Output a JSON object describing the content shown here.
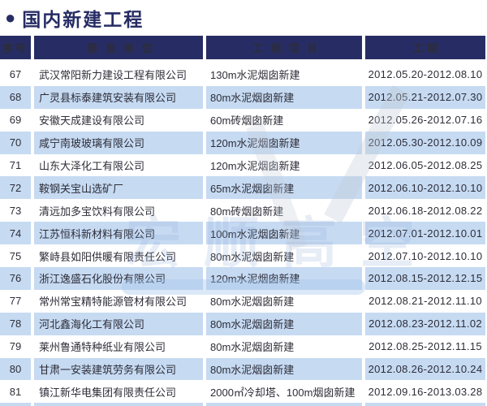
{
  "header": {
    "bullet": "●",
    "title": "国内新建工程"
  },
  "colors": {
    "navy": "#272d64",
    "stripe": "#c6daf2",
    "body_text": "#2d2d38"
  },
  "watermark": {
    "text": "宏顺高空"
  },
  "table": {
    "headers": [
      "序号",
      "建 设 单 位",
      "工 程 项 目",
      "工  期"
    ],
    "rows": [
      {
        "no": "67",
        "company": "武汉常阳新力建设工程有限公司",
        "project": "130m水泥烟囱新建",
        "period": "2012.05.20-2012.08.10"
      },
      {
        "no": "68",
        "company": "广灵县标泰建筑安装有限公司",
        "project": "80m水泥烟囱新建",
        "period": "2012.05.21-2012.07.30"
      },
      {
        "no": "69",
        "company": "安徽天成建设有限公司",
        "project": "60m砖烟囱新建",
        "period": "2012.05.26-2012.07.16"
      },
      {
        "no": "70",
        "company": "咸宁南玻玻璃有限公司",
        "project": "120m水泥烟囱新建",
        "period": "2012.05.30-2012.10.09"
      },
      {
        "no": "71",
        "company": "山东大泽化工有限公司",
        "project": "120m水泥烟囱新建",
        "period": "2012.06.05-2012.08.25"
      },
      {
        "no": "72",
        "company": "鞍钢关宝山选矿厂",
        "project": "65m水泥烟囱新建",
        "period": "2012.06.10-2012.10.10"
      },
      {
        "no": "73",
        "company": "清远加多宝饮料有限公司",
        "project": "80m砖烟囱新建",
        "period": "2012.06.18-2012.08.22"
      },
      {
        "no": "74",
        "company": "江苏恒科新材料有限公司",
        "project": "100m水泥烟囱新建",
        "period": "2012.07.01-2012.10.01"
      },
      {
        "no": "75",
        "company": "繁峙县如阳供暖有限责任公司",
        "project": "80m水泥烟囱新建",
        "period": "2012.07.10-2012.10.10"
      },
      {
        "no": "76",
        "company": "浙江逸盛石化股份有限公司",
        "project": "120m水泥烟囱新建",
        "period": "2012.08.15-2012.12.15"
      },
      {
        "no": "77",
        "company": "常州常宝精特能源管材有限公司",
        "project": "80m水泥烟囱新建",
        "period": "2012.08.21-2012.11.10"
      },
      {
        "no": "78",
        "company": "河北鑫海化工有限公司",
        "project": "80m水泥烟囱新建",
        "period": "2012.08.23-2012.11.02"
      },
      {
        "no": "79",
        "company": "莱州鲁通特种纸业有限公司",
        "project": "80m水泥烟囱新建",
        "period": "2012.08.25-2012.11.15"
      },
      {
        "no": "80",
        "company": "甘肃一安装建筑劳务有限公司",
        "project": "80m水泥烟囱新建",
        "period": "2012.08.26-2012.10.24"
      },
      {
        "no": "81",
        "company": "镇江新华电集团有限责任公司",
        "project": "2000㎡冷却塔、100m烟囱新建",
        "period": "2012.09.16-2013.03.28"
      }
    ]
  }
}
